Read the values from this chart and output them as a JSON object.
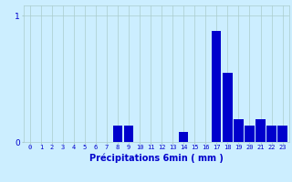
{
  "hours": [
    0,
    1,
    2,
    3,
    4,
    5,
    6,
    7,
    8,
    9,
    10,
    11,
    12,
    13,
    14,
    15,
    16,
    17,
    18,
    19,
    20,
    21,
    22,
    23
  ],
  "values": [
    0,
    0,
    0,
    0,
    0,
    0,
    0,
    0,
    0.13,
    0.13,
    0,
    0,
    0,
    0,
    0.08,
    0,
    0,
    0.88,
    0.55,
    0.18,
    0.13,
    0.18,
    0.13,
    0.13
  ],
  "bar_color": "#0000cc",
  "bg_color": "#cceeff",
  "grid_color": "#aacccc",
  "xlabel": "Précipitations 6min ( mm )",
  "ylim": [
    0,
    1.08
  ],
  "yticks": [
    0,
    1
  ],
  "xlabel_color": "#0000cc",
  "tick_color": "#0000cc",
  "title": ""
}
